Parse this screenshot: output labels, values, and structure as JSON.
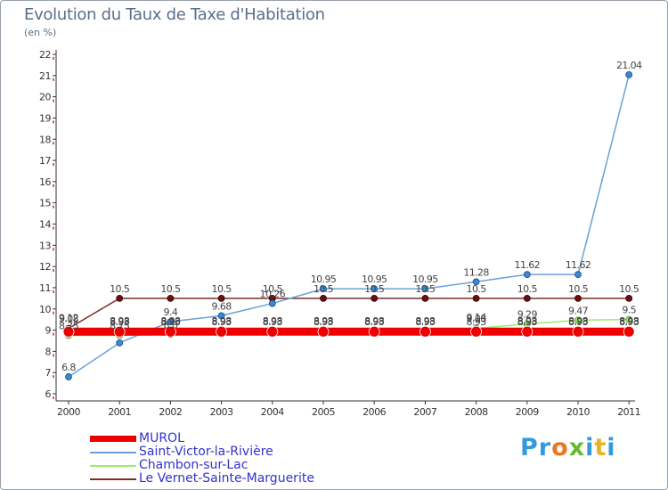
{
  "header": {
    "title": "Evolution du Taux de Taxe d'Habitation",
    "unit": "(en %)"
  },
  "logo": {
    "text": "Proxiti",
    "letters": [
      {
        "ch": "P",
        "color": "#3399dd"
      },
      {
        "ch": "r",
        "color": "#3399dd"
      },
      {
        "ch": "o",
        "color": "#e87722"
      },
      {
        "ch": "x",
        "color": "#66bb33"
      },
      {
        "ch": "i",
        "color": "#3399dd"
      },
      {
        "ch": "t",
        "color": "#e8b222"
      },
      {
        "ch": "i",
        "color": "#3399dd"
      }
    ]
  },
  "chart_data": {
    "type": "line",
    "title": "Evolution du Taux de Taxe d'Habitation",
    "ylabel": "(en %)",
    "xlabel": "",
    "categories": [
      "2000",
      "2001",
      "2002",
      "2003",
      "2004",
      "2005",
      "2006",
      "2007",
      "2008",
      "2009",
      "2010",
      "2011"
    ],
    "ylim": [
      6,
      22
    ],
    "yticks": [
      6,
      7,
      8,
      9,
      10,
      11,
      12,
      13,
      14,
      15,
      16,
      17,
      18,
      19,
      20,
      21,
      22
    ],
    "grid": false,
    "legend_position": "bottom-left",
    "series": [
      {
        "name": "MUROL",
        "color": "#ee0000",
        "style": "thick",
        "values": [
          8.93,
          8.93,
          8.93,
          8.93,
          8.93,
          8.93,
          8.93,
          8.93,
          8.93,
          8.93,
          8.93,
          8.93
        ],
        "labels": [
          "",
          "8.93",
          "8.93",
          "8.93",
          "8.93",
          "8.93",
          "8.93",
          "8.93",
          "8.93",
          "8.93",
          "8.93",
          "8.93"
        ]
      },
      {
        "name": "Saint-Victor-la-Rivière",
        "color": "#6aa0d8",
        "style": "line",
        "values": [
          6.8,
          8.4,
          9.4,
          9.68,
          10.26,
          10.95,
          10.95,
          10.95,
          11.28,
          11.62,
          11.62,
          21.04
        ],
        "labels": [
          "6.8",
          "",
          "9.4",
          "9.68",
          "10.26",
          "10.95",
          "10.95",
          "10.95",
          "11.28",
          "11.62",
          "11.62",
          "21.04"
        ]
      },
      {
        "name": "Chambon-sur-Lac",
        "color": "#99ee66",
        "style": "line",
        "values": [
          8.75,
          8.75,
          8.8,
          8.98,
          8.98,
          8.98,
          8.98,
          8.98,
          9.08,
          9.29,
          9.47,
          9.5
        ],
        "labels": [
          "8.75",
          "8.75",
          "8.8",
          "",
          "8.98",
          "8.98",
          "8.98",
          "8.98",
          "9.08",
          "9.29",
          "9.47",
          "9.5"
        ]
      },
      {
        "name": "Le Vernet-Sainte-Marguerite",
        "color": "#7a2e2e",
        "style": "line",
        "values": [
          9.08,
          10.5,
          10.5,
          10.5,
          10.5,
          10.5,
          10.5,
          10.5,
          10.5,
          10.5,
          10.5,
          10.5
        ],
        "labels": [
          "9.08",
          "10.5",
          "10.5",
          "10.5",
          "10.5",
          "10.5",
          "10.5",
          "10.5",
          "10.5",
          "10.5",
          "10.5",
          "10.5"
        ]
      }
    ],
    "extra_labels": [
      {
        "x_index": 0,
        "value": 9.12,
        "text": "9.12"
      },
      {
        "x_index": 1,
        "value": 8.98,
        "text": "8.98"
      },
      {
        "x_index": 2,
        "value": 8.98,
        "text": "8.98"
      },
      {
        "x_index": 3,
        "value": 8.98,
        "text": "8.98"
      },
      {
        "x_index": 8,
        "value": 9.14,
        "text": "9.14"
      },
      {
        "x_index": 9,
        "value": 8.98,
        "text": "8.98"
      },
      {
        "x_index": 10,
        "value": 8.98,
        "text": "8.98"
      },
      {
        "x_index": 11,
        "value": 8.98,
        "text": "8.98"
      }
    ]
  }
}
